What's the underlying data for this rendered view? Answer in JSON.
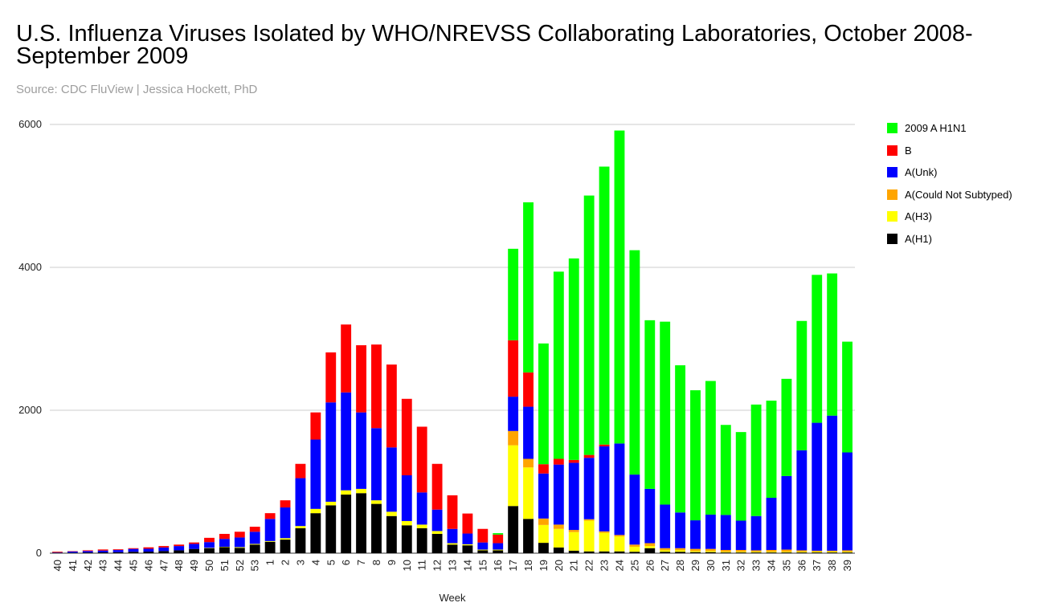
{
  "chart_data": {
    "type": "bar",
    "stacked": true,
    "title": "U.S. Influenza Viruses Isolated by WHO/NREVSS Collaborating Laboratories, October 2008-September 2009",
    "subtitle": "Source: CDC FluView | Jessica Hockett, PhD",
    "xlabel": "Week",
    "ylabel": "",
    "ylim": [
      0,
      6000
    ],
    "yticks": [
      "0",
      "2000",
      "4000",
      "6000"
    ],
    "grid": true,
    "legend_position": "right",
    "categories": [
      "40",
      "41",
      "42",
      "43",
      "44",
      "45",
      "46",
      "47",
      "48",
      "49",
      "50",
      "51",
      "52",
      "53",
      "1",
      "2",
      "3",
      "4",
      "5",
      "6",
      "7",
      "8",
      "9",
      "10",
      "11",
      "12",
      "13",
      "14",
      "15",
      "16",
      "17",
      "18",
      "19",
      "20",
      "21",
      "22",
      "23",
      "24",
      "25",
      "26",
      "27",
      "28",
      "29",
      "30",
      "31",
      "32",
      "33",
      "34",
      "35",
      "36",
      "37",
      "38",
      "39"
    ],
    "series": [
      {
        "name": "A(H1)",
        "color": "#000000",
        "values": [
          5,
          8,
          10,
          12,
          14,
          20,
          22,
          30,
          40,
          60,
          70,
          85,
          75,
          120,
          160,
          190,
          350,
          560,
          670,
          820,
          840,
          690,
          520,
          390,
          350,
          270,
          120,
          110,
          40,
          40,
          660,
          480,
          145,
          80,
          35,
          25,
          25,
          25,
          20,
          70,
          20,
          20,
          15,
          15,
          10,
          10,
          10,
          10,
          10,
          10,
          10,
          10,
          10
        ]
      },
      {
        "name": "A(H3)",
        "color": "#ffff00",
        "values": [
          0,
          0,
          0,
          0,
          0,
          0,
          0,
          0,
          0,
          0,
          5,
          5,
          10,
          10,
          10,
          20,
          30,
          60,
          50,
          60,
          60,
          50,
          60,
          60,
          50,
          40,
          20,
          15,
          10,
          10,
          850,
          720,
          250,
          260,
          260,
          430,
          260,
          210,
          70,
          30,
          20,
          20,
          15,
          15,
          10,
          10,
          10,
          10,
          10,
          10,
          10,
          10,
          10
        ]
      },
      {
        "name": "A(Could Not Subtyped)",
        "color": "#ffa500",
        "values": [
          0,
          0,
          0,
          0,
          0,
          0,
          0,
          0,
          0,
          0,
          0,
          0,
          0,
          0,
          0,
          0,
          0,
          0,
          0,
          0,
          0,
          0,
          0,
          0,
          0,
          0,
          0,
          0,
          0,
          0,
          200,
          120,
          90,
          60,
          30,
          20,
          20,
          20,
          30,
          40,
          30,
          30,
          30,
          30,
          25,
          25,
          20,
          25,
          30,
          20,
          15,
          15,
          20
        ]
      },
      {
        "name": "A(Unk)",
        "color": "#0000ff",
        "values": [
          5,
          15,
          20,
          25,
          30,
          40,
          40,
          50,
          60,
          70,
          80,
          110,
          135,
          170,
          310,
          430,
          670,
          970,
          1390,
          1370,
          1070,
          1010,
          900,
          640,
          450,
          300,
          200,
          150,
          100,
          90,
          480,
          730,
          630,
          840,
          940,
          860,
          1190,
          1280,
          980,
          760,
          610,
          500,
          400,
          480,
          490,
          410,
          480,
          730,
          1030,
          1400,
          1790,
          1890,
          1370
        ]
      },
      {
        "name": "B",
        "color": "#ff0000",
        "values": [
          10,
          5,
          10,
          15,
          10,
          10,
          20,
          20,
          20,
          20,
          60,
          70,
          80,
          70,
          80,
          100,
          200,
          380,
          700,
          950,
          940,
          1170,
          1160,
          1070,
          920,
          640,
          470,
          280,
          190,
          120,
          790,
          480,
          130,
          80,
          40,
          40,
          25,
          0,
          0,
          0,
          0,
          0,
          0,
          0,
          0,
          0,
          0,
          0,
          0,
          0,
          0,
          0,
          0
        ]
      },
      {
        "name": "2009 A H1N1",
        "color": "#00ff00",
        "values": [
          0,
          0,
          0,
          0,
          0,
          0,
          0,
          0,
          0,
          0,
          0,
          0,
          0,
          0,
          0,
          0,
          0,
          0,
          0,
          0,
          0,
          0,
          0,
          0,
          0,
          0,
          0,
          0,
          0,
          20,
          1280,
          2380,
          1690,
          2620,
          2820,
          3630,
          3890,
          4380,
          3140,
          2360,
          2560,
          2060,
          1820,
          1870,
          1260,
          1240,
          1560,
          1360,
          1360,
          1810,
          2070,
          1990,
          1550
        ]
      }
    ],
    "legend_order": [
      "2009 A H1N1",
      "B",
      "A(Unk)",
      "A(Could Not Subtyped)",
      "A(H3)",
      "A(H1)"
    ]
  }
}
